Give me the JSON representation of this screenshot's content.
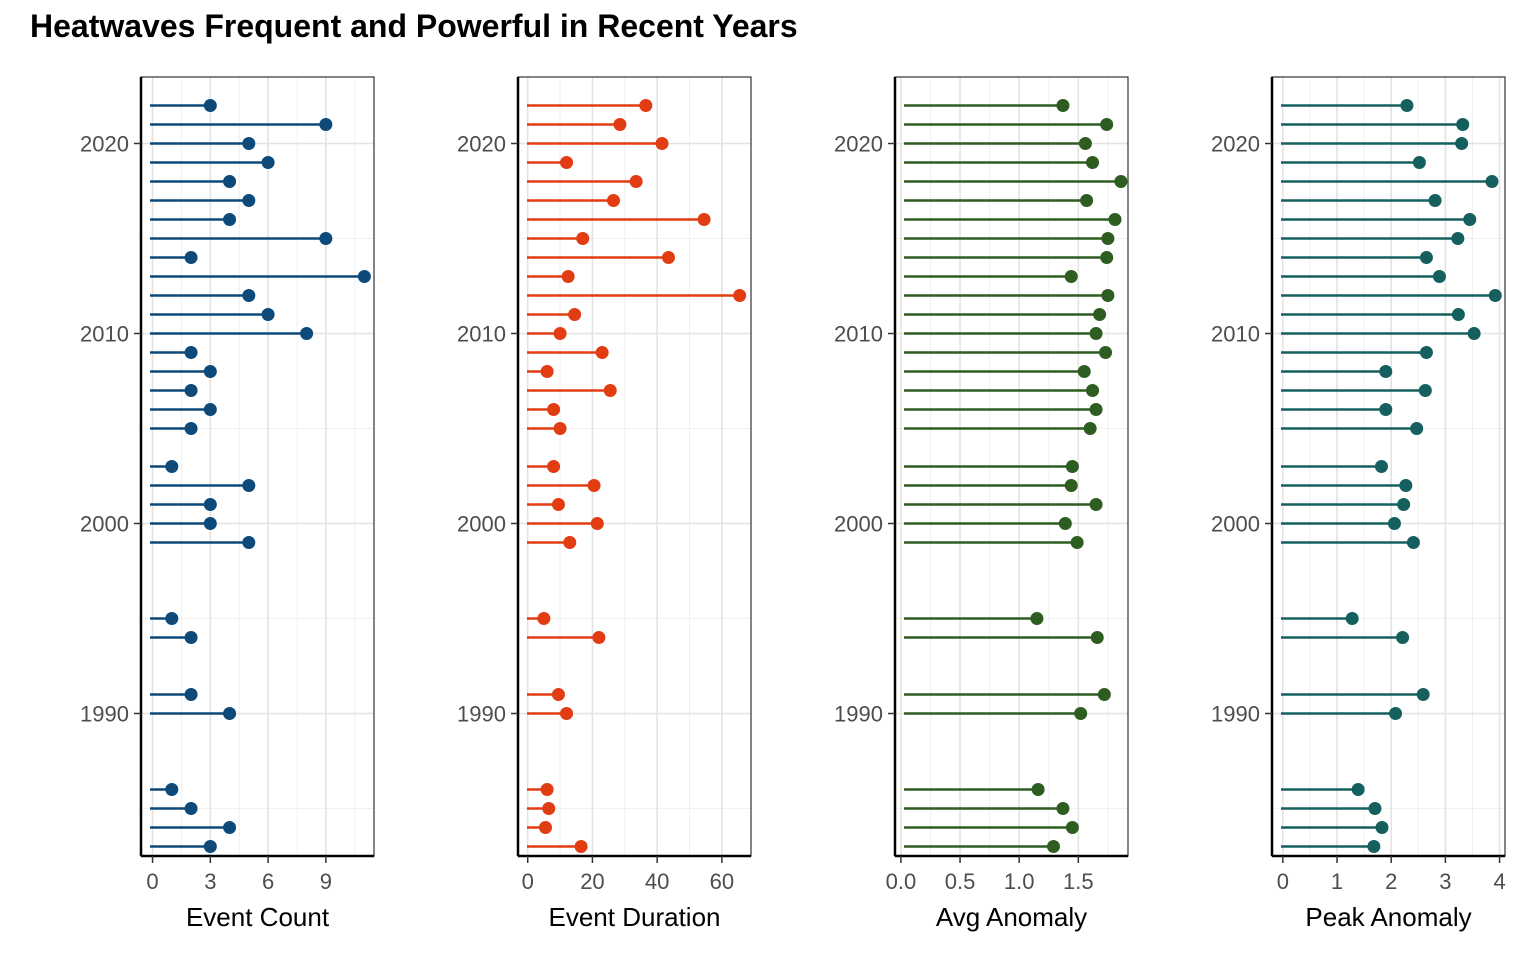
{
  "title": "Heatwaves Frequent and Powerful in Recent Years",
  "chart_data": {
    "type": "lollipop",
    "title": "Heatwaves Frequent and Powerful in Recent Years",
    "y_axis": {
      "ticks": [
        1990,
        2000,
        2010,
        2020
      ],
      "ylim": [
        1982.5,
        2023.5
      ]
    },
    "years": [
      1983,
      1984,
      1985,
      1986,
      1990,
      1991,
      1994,
      1995,
      1999,
      2000,
      2001,
      2002,
      2003,
      2005,
      2006,
      2007,
      2008,
      2009,
      2010,
      2011,
      2012,
      2013,
      2014,
      2015,
      2016,
      2017,
      2018,
      2019,
      2020,
      2021,
      2022
    ],
    "panels": [
      {
        "xlabel": "Event Count",
        "color": "#0d4a7a",
        "xlim": [
          -0.6,
          11.5
        ],
        "xticks": [
          0,
          3,
          6,
          9
        ],
        "xtick_labels": [
          "0",
          "3",
          "6",
          "9"
        ],
        "values": [
          3,
          4,
          2,
          1,
          4,
          2,
          2,
          1,
          5,
          3,
          3,
          5,
          1,
          2,
          3,
          2,
          3,
          2,
          8,
          6,
          5,
          11,
          2,
          9,
          4,
          5,
          4,
          6,
          5,
          9,
          3
        ]
      },
      {
        "xlabel": "Event Duration",
        "color": "#e23c12",
        "xlim": [
          -3,
          69
        ],
        "xticks": [
          0,
          20,
          40,
          60
        ],
        "xtick_labels": [
          "0",
          "20",
          "40",
          "60"
        ],
        "values": [
          16.5,
          5.5,
          6.5,
          6,
          12,
          9.5,
          22,
          5,
          13,
          21.5,
          9.5,
          20.5,
          8,
          10,
          8,
          25.5,
          6,
          23,
          10,
          14.5,
          65.5,
          12.5,
          43.5,
          17,
          54.5,
          26.5,
          33.5,
          12,
          41.5,
          28.5,
          36.5
        ]
      },
      {
        "xlabel": "Avg Anomaly",
        "color": "#2e5d21",
        "xlim": [
          -0.05,
          1.92
        ],
        "xticks": [
          0,
          0.5,
          1,
          1.5
        ],
        "xtick_labels": [
          "0.0",
          "0.5",
          "1.0",
          "1.5"
        ],
        "values": [
          1.29,
          1.45,
          1.37,
          1.16,
          1.52,
          1.72,
          1.66,
          1.15,
          1.49,
          1.39,
          1.65,
          1.44,
          1.45,
          1.6,
          1.65,
          1.62,
          1.55,
          1.73,
          1.65,
          1.68,
          1.75,
          1.44,
          1.74,
          1.75,
          1.81,
          1.57,
          1.86,
          1.62,
          1.56,
          1.74,
          1.37
        ]
      },
      {
        "xlabel": "Peak Anomaly",
        "color": "#15605f",
        "xlim": [
          -0.2,
          4.1
        ],
        "xticks": [
          0,
          1,
          2,
          3,
          4
        ],
        "xtick_labels": [
          "0",
          "1",
          "2",
          "3",
          "4"
        ],
        "values": [
          1.68,
          1.83,
          1.7,
          1.39,
          2.08,
          2.59,
          2.21,
          1.28,
          2.41,
          2.06,
          2.23,
          2.27,
          1.82,
          2.47,
          1.9,
          2.63,
          1.9,
          2.65,
          3.53,
          3.24,
          3.92,
          2.89,
          2.65,
          3.23,
          3.45,
          2.81,
          3.86,
          2.52,
          3.3,
          3.32,
          2.29
        ]
      }
    ]
  }
}
